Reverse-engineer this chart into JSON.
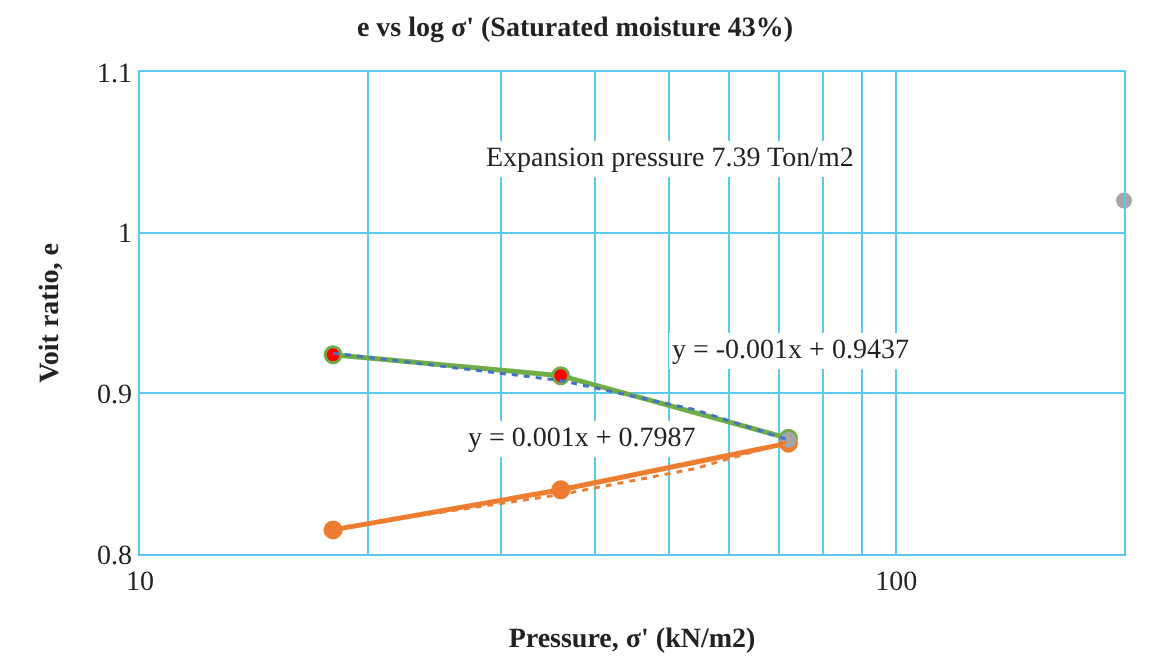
{
  "chart_data": {
    "type": "line",
    "title": "e vs log σ' (Saturated moisture 43%)",
    "xlabel": "Pressure, σ' (kN/m2)",
    "ylabel": "Voit ratio, e",
    "log": "x",
    "grid": true,
    "marker": "circle",
    "xlim": [
      10,
      200
    ],
    "xticks": [
      10,
      {
        "value": 20,
        "label": null
      },
      {
        "value": 30,
        "label": null
      },
      {
        "value": 40,
        "label": null
      },
      {
        "value": 50,
        "label": null
      },
      {
        "value": 60,
        "label": null
      },
      {
        "value": 70,
        "label": null
      },
      {
        "value": 80,
        "label": null
      },
      {
        "value": 90,
        "label": null
      },
      100,
      {
        "value": 200,
        "label": null
      }
    ],
    "ylim": [
      0.8,
      1.1
    ],
    "yticks": [
      0.8,
      0.9,
      1,
      1.1
    ],
    "series": [
      {
        "color": "#70ad47",
        "colors": [
          "#ff0000",
          "#ff0000",
          "#a5a5a5"
        ],
        "x": [
          18,
          36,
          72
        ],
        "values": [
          0.924,
          0.911,
          0.872
        ]
      },
      {
        "color": "#ed7d31",
        "colors": [
          "#ed7d31",
          "#ed7d31",
          "#ed7d31"
        ],
        "x": [
          18,
          36,
          72
        ],
        "values": [
          0.815,
          0.84,
          0.869
        ]
      },
      {
        "type": "scatter",
        "color": "#a5a5a5",
        "x": [
          72,
          200
        ],
        "values": [
          0.871,
          1.02
        ]
      },
      {
        "color": "#4472c4",
        "line_style": "dotted",
        "marker": "none",
        "x": [
          18,
          36,
          54,
          72
        ],
        "values": [
          0.925,
          0.908,
          0.89,
          0.871
        ]
      },
      {
        "color": "#ed7d31",
        "line_style": "dotted",
        "marker": "none",
        "x": [
          18,
          36,
          54,
          72
        ],
        "values": [
          0.816,
          0.837,
          0.853,
          0.87
        ]
      }
    ],
    "annotations": [
      "Expansion pressure 7.39 Ton/m2",
      "y = -0.001x + 0.9437",
      "y = 0.001x + 0.7987"
    ]
  }
}
